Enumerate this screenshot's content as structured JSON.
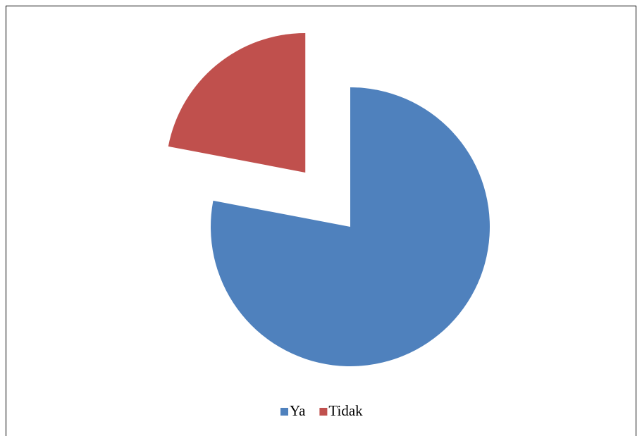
{
  "chart_data": {
    "type": "pie",
    "categories": [
      "Ya",
      "Tidak"
    ],
    "values": [
      78,
      22
    ],
    "colors": [
      "#4f81bd",
      "#c0504d"
    ],
    "explode": [
      false,
      true
    ],
    "legend": "bottom"
  }
}
